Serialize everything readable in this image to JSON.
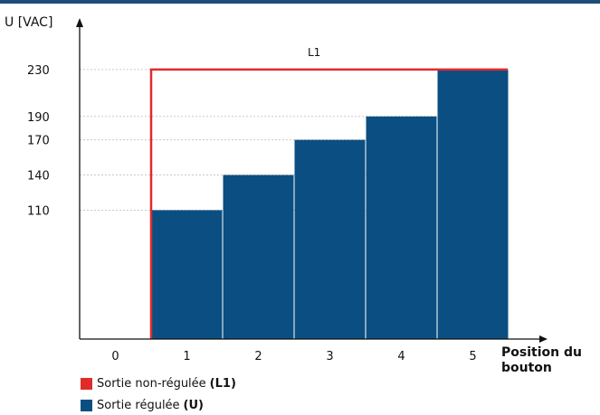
{
  "chart_data": {
    "type": "bar",
    "ylabel": "U [VAC]",
    "xlabel_line1": "Position du",
    "xlabel_line2": "bouton",
    "categories": [
      "0",
      "1",
      "2",
      "3",
      "4",
      "5"
    ],
    "yticks": [
      110,
      140,
      170,
      190,
      230
    ],
    "ylim": [
      0,
      250
    ],
    "grid": true,
    "series": [
      {
        "name": "Sortie régulée",
        "key": "U",
        "type": "bar",
        "color": "#0b4f82",
        "values": [
          null,
          110,
          140,
          170,
          190,
          230
        ]
      },
      {
        "name": "Sortie non-régulée",
        "key": "L1",
        "type": "step",
        "color": "#e02b2b",
        "values": [
          null,
          230,
          230,
          230,
          230,
          230
        ]
      }
    ],
    "annotations": [
      {
        "text": "L1",
        "x": "3",
        "y": 243
      }
    ]
  },
  "legend": [
    {
      "label": "Sortie non-régulée",
      "key": "(L1)",
      "color": "#e02b2b"
    },
    {
      "label": "Sortie régulée",
      "key": "(U)",
      "color": "#0b4f82"
    }
  ]
}
